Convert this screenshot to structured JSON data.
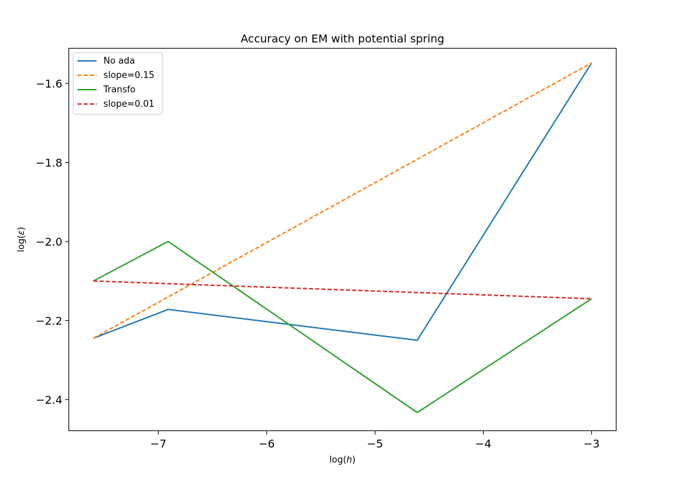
{
  "chart_data": {
    "type": "line",
    "title": "Accuracy on EM with potential spring",
    "xlabel": "log(h)",
    "ylabel": "log(ε)",
    "xlim": [
      -7.83,
      -2.77
    ],
    "ylim": [
      -2.48,
      -1.51
    ],
    "xticks": [
      -7,
      -6,
      -5,
      -4,
      -3
    ],
    "xtick_labels": [
      "−7",
      "−6",
      "−5",
      "−4",
      "−3"
    ],
    "yticks": [
      -2.4,
      -2.2,
      -2.0,
      -1.8,
      -1.6
    ],
    "ytick_labels": [
      "−2.4",
      "−2.2",
      "−2.0",
      "−1.8",
      "−1.6"
    ],
    "grid": false,
    "legend_position": "top-left",
    "series": [
      {
        "name": "No ada",
        "color": "#1f77b4",
        "style": "solid",
        "x": [
          -7.6,
          -6.91,
          -4.61,
          -3.0
        ],
        "y": [
          -2.245,
          -2.172,
          -2.25,
          -1.548
        ]
      },
      {
        "name": "slope=0.15",
        "color": "#ff7f0e",
        "style": "dashed",
        "x": [
          -7.6,
          -3.0
        ],
        "y": [
          -2.245,
          -1.548
        ]
      },
      {
        "name": "Transfo",
        "color": "#2ca02c",
        "style": "solid",
        "x": [
          -7.6,
          -6.91,
          -4.61,
          -3.0
        ],
        "y": [
          -2.1,
          -2.0,
          -2.433,
          -2.145
        ]
      },
      {
        "name": "slope=0.01",
        "color": "#d62728",
        "style": "dashed",
        "x": [
          -7.6,
          -3.0
        ],
        "y": [
          -2.1,
          -2.145
        ]
      }
    ]
  }
}
